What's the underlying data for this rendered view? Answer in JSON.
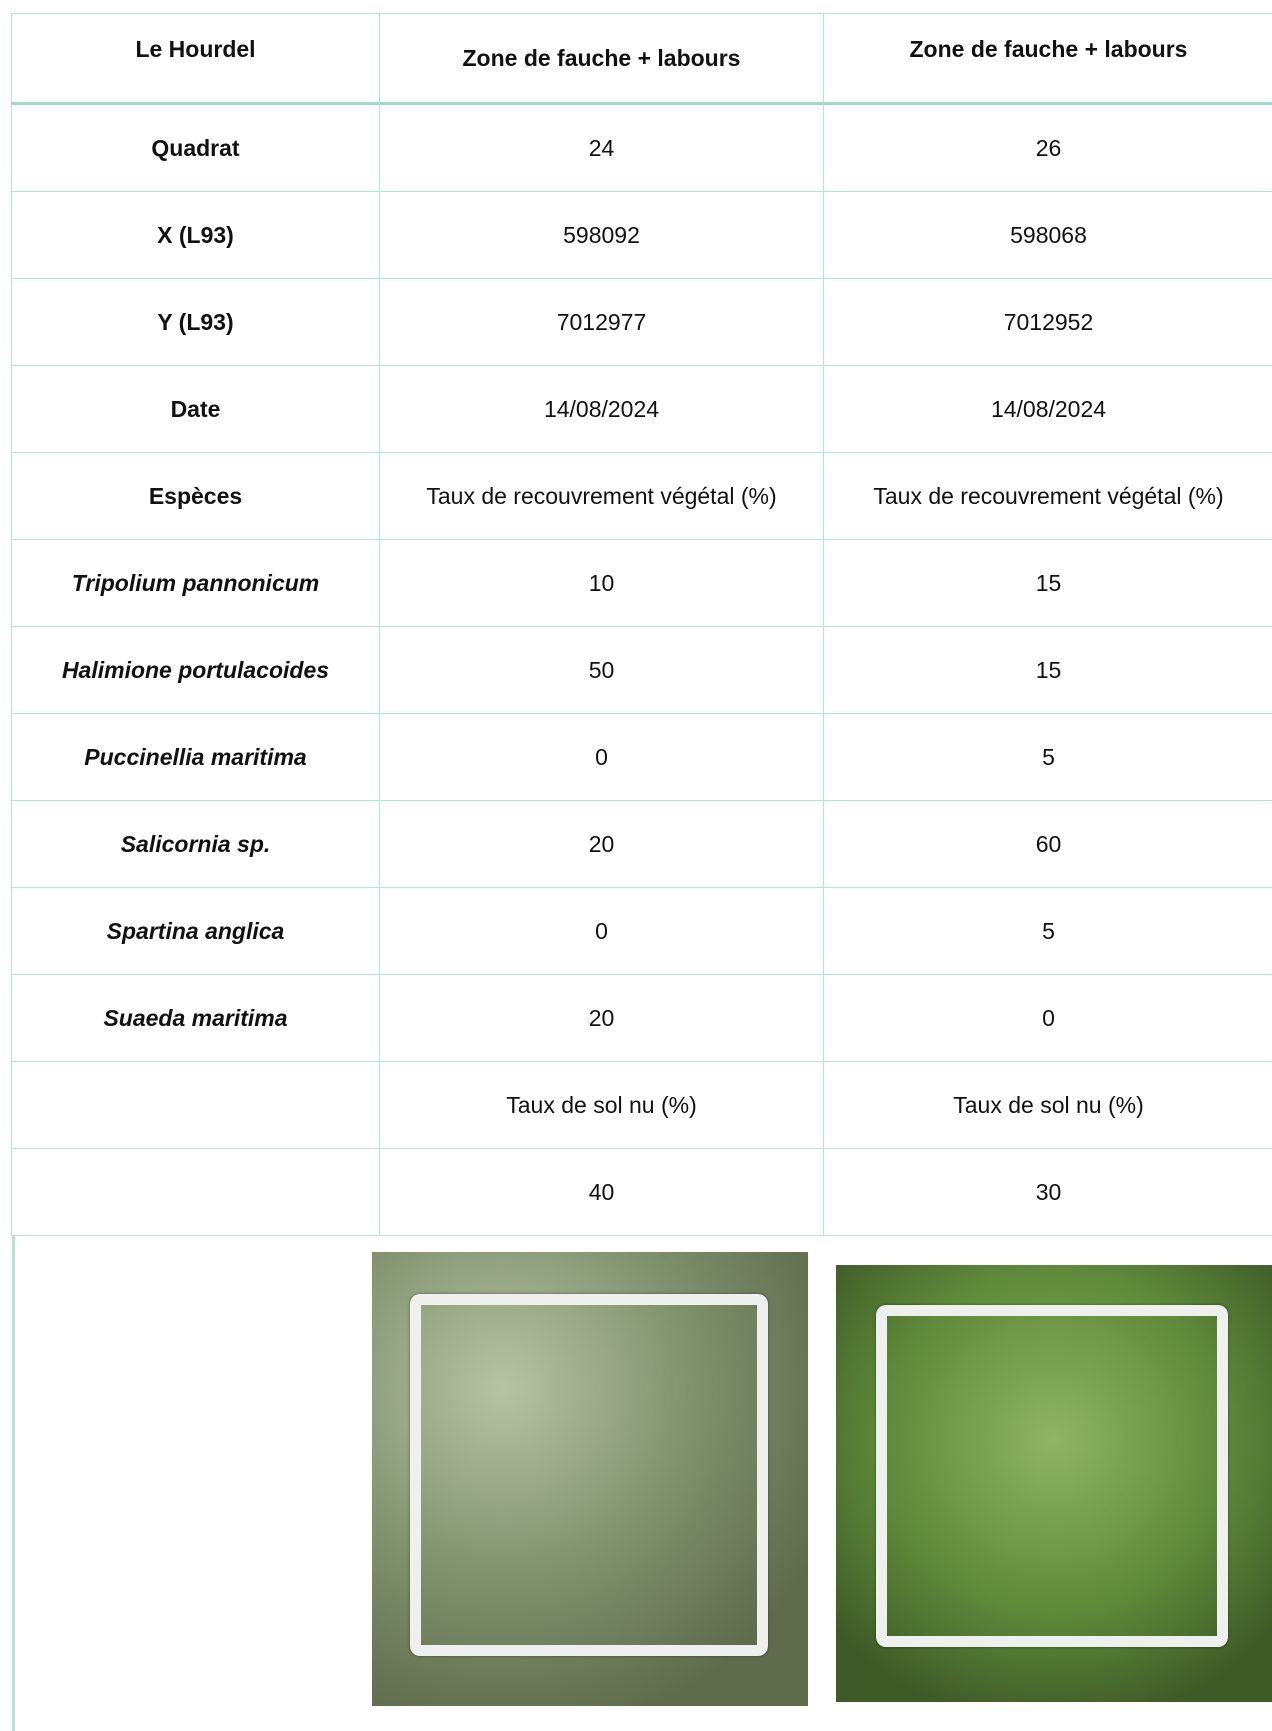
{
  "table": {
    "header": [
      "Le Hourdel",
      "Zone de fauche + labours",
      "Zone de fauche + labours"
    ],
    "rows": [
      [
        "Quadrat",
        24,
        26
      ],
      [
        "X (L93)",
        598092,
        598068
      ],
      [
        "Y (L93)",
        7012977,
        7012952
      ],
      [
        "Date",
        "14/08/2024",
        "14/08/2024"
      ],
      [
        "Espèces",
        "Taux de recouvrement végétal (%)",
        "Taux de recouvrement végétal (%)"
      ],
      [
        "Tripolium pannonicum",
        10,
        15
      ],
      [
        "Halimione portulacoides",
        50,
        15
      ],
      [
        "Puccinellia maritima",
        0,
        5
      ],
      [
        "Salicornia sp.",
        20,
        60
      ],
      [
        "Spartina anglica",
        0,
        5
      ],
      [
        "Suaeda maritima",
        20,
        0
      ],
      [
        null,
        "Taux de sol nu (%)",
        "Taux de sol nu (%)"
      ],
      [
        null,
        40,
        30
      ]
    ]
  }
}
